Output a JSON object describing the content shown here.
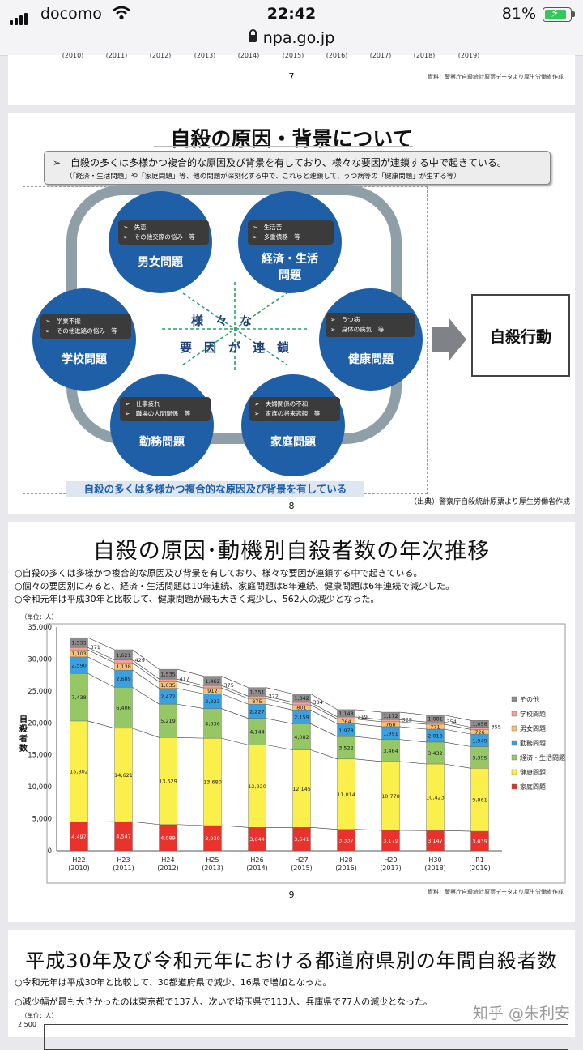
{
  "status": {
    "carrier": "docomo",
    "time": "22:42",
    "battery": "81%",
    "url": "npa.go.jp"
  },
  "slide7": {
    "years": [
      "(2010)",
      "(2011)",
      "(2012)",
      "(2013)",
      "(2014)",
      "(2015)",
      "(2016)",
      "(2017)",
      "(2018)",
      "(2019)"
    ],
    "page": "7",
    "source": "資料：警察庁自殺統計原票データより厚生労働省作成"
  },
  "slide8": {
    "title": "自殺の原因・背景について",
    "summary1": "➢　自殺の多くは多様かつ複合的な原因及び背景を有しており、様々な要因が連鎖する中で起きている。",
    "summary2": "（「経済・生活問題」や「家庭問題」等、他の問題が深刻化する中で、これらと連鎖して、うつ病等の「健康問題」が生ずる等）",
    "circles": [
      {
        "label": "男女問題",
        "items": [
          "➢　失恋",
          "➢　その他交際の悩み　等"
        ]
      },
      {
        "label": "経済・生活問題",
        "items": [
          "➢　生活苦",
          "➢　多重債務　等"
        ]
      },
      {
        "label": "学校問題",
        "items": [
          "➢　学業不振",
          "➢　その他進路の悩み　等"
        ]
      },
      {
        "label": "健康問題",
        "items": [
          "➢　うつ病",
          "➢　身体の病気　等"
        ]
      },
      {
        "label": "勤務問題",
        "items": [
          "➢　仕事疲れ",
          "➢　職場の人間関係　等"
        ]
      },
      {
        "label": "家庭問題",
        "items": [
          "➢　夫婦関係の不和",
          "➢　家族の将来悲観　等"
        ]
      }
    ],
    "center_line1": "様　々　な",
    "center_line2": "要　因　が　連　鎖",
    "action": "自殺行動",
    "bottom_note": "自殺の多くは多様かつ複合的な原因及び背景を有している",
    "source": "（出典）警察庁自殺統計原票より厚生労働省作成",
    "page": "8"
  },
  "slide9": {
    "title": "自殺の原因･動機別自殺者数の年次推移",
    "bullets": [
      "○自殺の多くは多様かつ複合的な原因及び背景を有しており、様々な要因が連鎖する中で起きている。",
      "○個々の要因別にみると、経済・生活問題は10年連続、家庭問題は8年連続、健康問題は6年連続で減少した。",
      "○令和元年は平成30年と比較して、健康問題が最も大きく減少し、562人の減少となった。"
    ],
    "page": "9",
    "source": "資料：警察庁自殺統計原票データより厚生労働省作成",
    "chart_data": {
      "type": "bar",
      "stacked": true,
      "categories": [
        "H22\n(2010)",
        "H23\n(2011)",
        "H24\n(2012)",
        "H25\n(2013)",
        "H26\n(2014)",
        "H27\n(2015)",
        "H28\n(2016)",
        "H29\n(2017)",
        "H30\n(2018)",
        "R1\n(2019)"
      ],
      "ylabel": "自殺者数",
      "unit": "（単位：人）",
      "ylim": [
        0,
        35000
      ],
      "yticks": [
        0,
        5000,
        10000,
        15000,
        20000,
        25000,
        30000,
        35000
      ],
      "legend_position": "right",
      "series": [
        {
          "name": "家庭問題",
          "color": "#e8322b",
          "values": [
            4497,
            4547,
            4089,
            3930,
            3644,
            3641,
            3337,
            3179,
            3147,
            3039
          ]
        },
        {
          "name": "健康問題",
          "color": "#fbf04b",
          "values": [
            15802,
            14621,
            13629,
            13680,
            12920,
            12145,
            11014,
            10778,
            10423,
            9861
          ]
        },
        {
          "name": "経済・生活問題",
          "color": "#95c864",
          "values": [
            7438,
            6406,
            5219,
            4636,
            4144,
            4082,
            3522,
            3464,
            3432,
            3395
          ]
        },
        {
          "name": "勤務問題",
          "color": "#3aa0e0",
          "values": [
            2590,
            2689,
            2472,
            2323,
            2227,
            2159,
            1978,
            1991,
            2018,
            1949
          ]
        },
        {
          "name": "男女問題",
          "color": "#f7c173",
          "values": [
            1103,
            1138,
            1035,
            912,
            875,
            801,
            764,
            768,
            771,
            726
          ]
        },
        {
          "name": "学校問題",
          "color": "#f4a0a0",
          "values": [
            371,
            429,
            417,
            375,
            372,
            384,
            319,
            329,
            354,
            355
          ]
        },
        {
          "name": "その他",
          "color": "#8c8c8c",
          "values": [
            1533,
            1621,
            1535,
            1462,
            1351,
            1342,
            1148,
            1172,
            1081,
            1056
          ]
        }
      ],
      "legend_order": [
        "その他",
        "学校問題",
        "男女問題",
        "勤務問題",
        "経済・生活問題",
        "健康問題",
        "家庭問題"
      ]
    }
  },
  "slide10": {
    "title": "平成30年及び令和元年における都道府県別の年間自殺者数",
    "bullets": [
      "○令和元年は平成30年と比較して、30都道府県で減少、16県で増加となった。",
      "○減少幅が最も大きかったのは東京都で137人、次いで埼玉県で113人、兵庫県で77人の減少となった。"
    ],
    "unit": "（単位：人）",
    "ytick": "2,500"
  },
  "watermark": "知乎 @朱利安"
}
